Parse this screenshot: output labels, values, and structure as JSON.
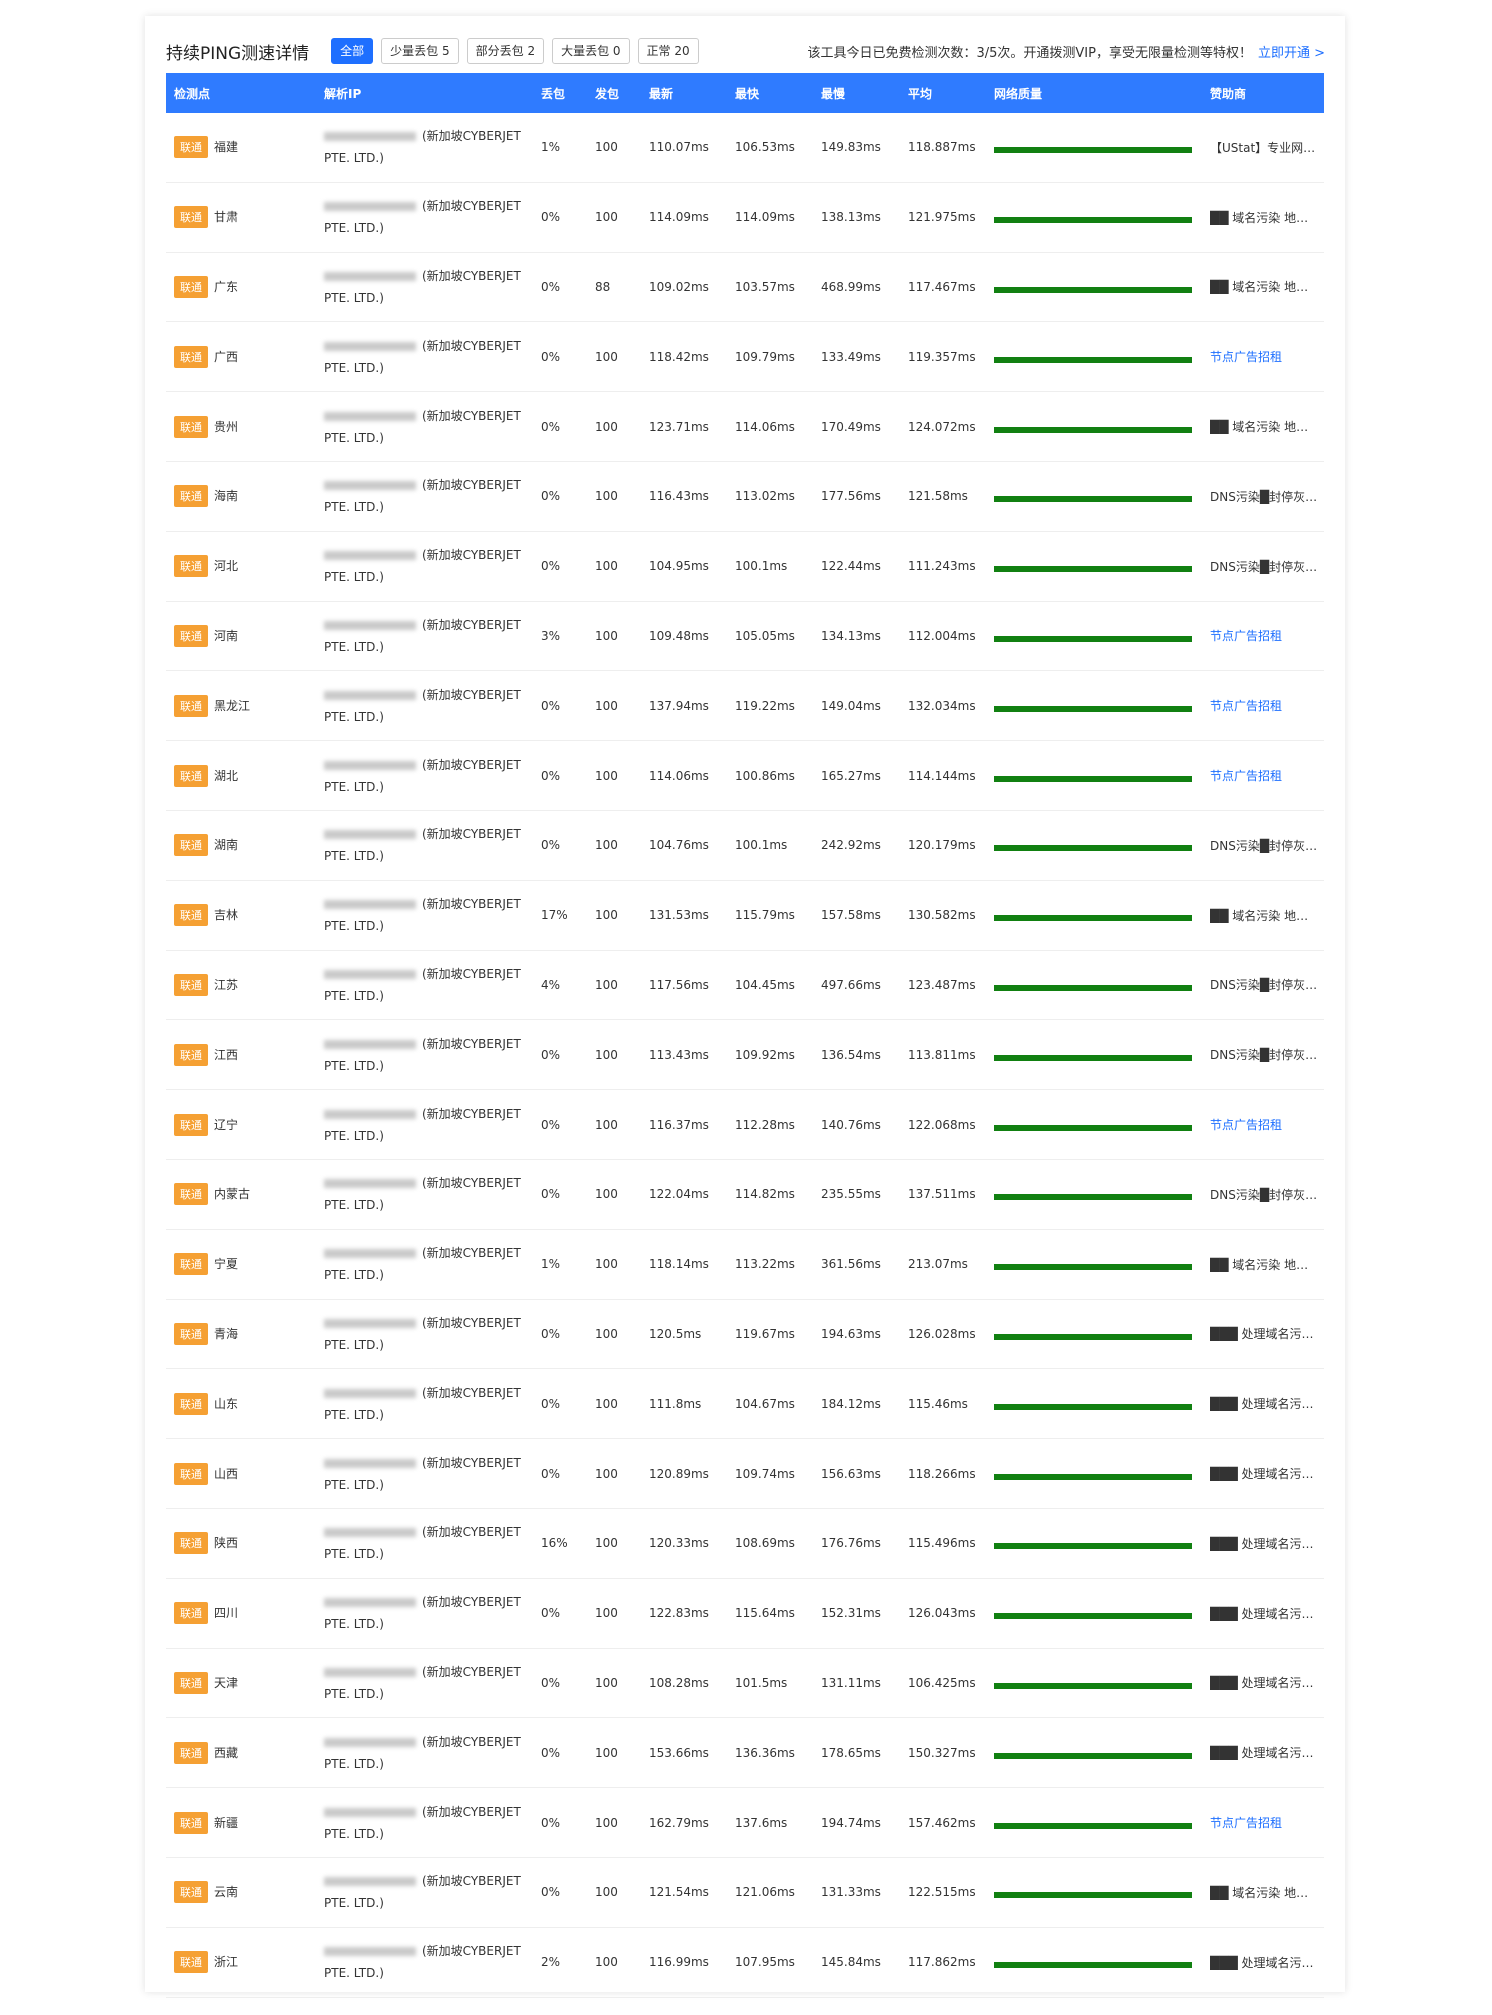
{
  "header": {
    "title": "持续PING测速详情",
    "filters": [
      "全部",
      "少量丢包 5",
      "部分丢包 2",
      "大量丢包 0",
      "正常 20"
    ],
    "notice": "该工具今日已免费检测次数：3/5次。开通拨测VIP，享受无限量检测等特权！",
    "notice_link": "立即开通 >"
  },
  "table": {
    "columns": [
      "检测点",
      "解析IP",
      "丢包",
      "发包",
      "最新",
      "最快",
      "最慢",
      "平均",
      "网络质量",
      "赞助商"
    ],
    "rows": [
      [
        "联通",
        "福建",
        "(新加坡CYBERJET PTE. LTD.)",
        "1%",
        "100",
        "110.07ms",
        "106.53ms",
        "149.83ms",
        "118.887ms",
        "【UStat】专业网…"
      ],
      [
        "联通",
        "甘肃",
        "(新加坡CYBERJET PTE. LTD.)",
        "0%",
        "100",
        "114.09ms",
        "114.09ms",
        "138.13ms",
        "121.975ms",
        "██ 域名污染 地…"
      ],
      [
        "联通",
        "广东",
        "(新加坡CYBERJET PTE. LTD.)",
        "0%",
        "88",
        "109.02ms",
        "103.57ms",
        "468.99ms",
        "117.467ms",
        "██ 域名污染 地…"
      ],
      [
        "联通",
        "广西",
        "(新加坡CYBERJET PTE. LTD.)",
        "0%",
        "100",
        "118.42ms",
        "109.79ms",
        "133.49ms",
        "119.357ms",
        "节点广告招租"
      ],
      [
        "联通",
        "贵州",
        "(新加坡CYBERJET PTE. LTD.)",
        "0%",
        "100",
        "123.71ms",
        "114.06ms",
        "170.49ms",
        "124.072ms",
        "██ 域名污染 地…"
      ],
      [
        "联通",
        "海南",
        "(新加坡CYBERJET PTE. LTD.)",
        "0%",
        "100",
        "116.43ms",
        "113.02ms",
        "177.56ms",
        "121.58ms",
        "DNS污染█封停灰…"
      ],
      [
        "联通",
        "河北",
        "(新加坡CYBERJET PTE. LTD.)",
        "0%",
        "100",
        "104.95ms",
        "100.1ms",
        "122.44ms",
        "111.243ms",
        "DNS污染█封停灰…"
      ],
      [
        "联通",
        "河南",
        "(新加坡CYBERJET PTE. LTD.)",
        "3%",
        "100",
        "109.48ms",
        "105.05ms",
        "134.13ms",
        "112.004ms",
        "节点广告招租"
      ],
      [
        "联通",
        "黑龙江",
        "(新加坡CYBERJET PTE. LTD.)",
        "0%",
        "100",
        "137.94ms",
        "119.22ms",
        "149.04ms",
        "132.034ms",
        "节点广告招租"
      ],
      [
        "联通",
        "湖北",
        "(新加坡CYBERJET PTE. LTD.)",
        "0%",
        "100",
        "114.06ms",
        "100.86ms",
        "165.27ms",
        "114.144ms",
        "节点广告招租"
      ],
      [
        "联通",
        "湖南",
        "(新加坡CYBERJET PTE. LTD.)",
        "0%",
        "100",
        "104.76ms",
        "100.1ms",
        "242.92ms",
        "120.179ms",
        "DNS污染█封停灰…"
      ],
      [
        "联通",
        "吉林",
        "(新加坡CYBERJET PTE. LTD.)",
        "17%",
        "100",
        "131.53ms",
        "115.79ms",
        "157.58ms",
        "130.582ms",
        "██ 域名污染 地…"
      ],
      [
        "联通",
        "江苏",
        "(新加坡CYBERJET PTE. LTD.)",
        "4%",
        "100",
        "117.56ms",
        "104.45ms",
        "497.66ms",
        "123.487ms",
        "DNS污染█封停灰…"
      ],
      [
        "联通",
        "江西",
        "(新加坡CYBERJET PTE. LTD.)",
        "0%",
        "100",
        "113.43ms",
        "109.92ms",
        "136.54ms",
        "113.811ms",
        "DNS污染█封停灰…"
      ],
      [
        "联通",
        "辽宁",
        "(新加坡CYBERJET PTE. LTD.)",
        "0%",
        "100",
        "116.37ms",
        "112.28ms",
        "140.76ms",
        "122.068ms",
        "节点广告招租"
      ],
      [
        "联通",
        "内蒙古",
        "(新加坡CYBERJET PTE. LTD.)",
        "0%",
        "100",
        "122.04ms",
        "114.82ms",
        "235.55ms",
        "137.511ms",
        "DNS污染█封停灰…"
      ],
      [
        "联通",
        "宁夏",
        "(新加坡CYBERJET PTE. LTD.)",
        "1%",
        "100",
        "118.14ms",
        "113.22ms",
        "361.56ms",
        "213.07ms",
        "██ 域名污染 地…"
      ],
      [
        "联通",
        "青海",
        "(新加坡CYBERJET PTE. LTD.)",
        "0%",
        "100",
        "120.5ms",
        "119.67ms",
        "194.63ms",
        "126.028ms",
        "███ 处理域名污…"
      ],
      [
        "联通",
        "山东",
        "(新加坡CYBERJET PTE. LTD.)",
        "0%",
        "100",
        "111.8ms",
        "104.67ms",
        "184.12ms",
        "115.46ms",
        "███ 处理域名污…"
      ],
      [
        "联通",
        "山西",
        "(新加坡CYBERJET PTE. LTD.)",
        "0%",
        "100",
        "120.89ms",
        "109.74ms",
        "156.63ms",
        "118.266ms",
        "███ 处理域名污…"
      ],
      [
        "联通",
        "陕西",
        "(新加坡CYBERJET PTE. LTD.)",
        "16%",
        "100",
        "120.33ms",
        "108.69ms",
        "176.76ms",
        "115.496ms",
        "███ 处理域名污…"
      ],
      [
        "联通",
        "四川",
        "(新加坡CYBERJET PTE. LTD.)",
        "0%",
        "100",
        "122.83ms",
        "115.64ms",
        "152.31ms",
        "126.043ms",
        "███ 处理域名污…"
      ],
      [
        "联通",
        "天津",
        "(新加坡CYBERJET PTE. LTD.)",
        "0%",
        "100",
        "108.28ms",
        "101.5ms",
        "131.11ms",
        "106.425ms",
        "███ 处理域名污…"
      ],
      [
        "联通",
        "西藏",
        "(新加坡CYBERJET PTE. LTD.)",
        "0%",
        "100",
        "153.66ms",
        "136.36ms",
        "178.65ms",
        "150.327ms",
        "███ 处理域名污…"
      ],
      [
        "联通",
        "新疆",
        "(新加坡CYBERJET PTE. LTD.)",
        "0%",
        "100",
        "162.79ms",
        "137.6ms",
        "194.74ms",
        "157.462ms",
        "节点广告招租"
      ],
      [
        "联通",
        "云南",
        "(新加坡CYBERJET PTE. LTD.)",
        "0%",
        "100",
        "121.54ms",
        "121.06ms",
        "131.33ms",
        "122.515ms",
        "██ 域名污染 地…"
      ],
      [
        "联通",
        "浙江",
        "(新加坡CYBERJET PTE. LTD.)",
        "2%",
        "100",
        "116.99ms",
        "107.95ms",
        "145.84ms",
        "117.862ms",
        "███ 处理域名污…"
      ]
    ]
  }
}
